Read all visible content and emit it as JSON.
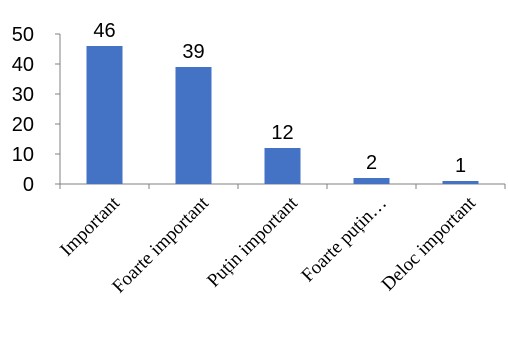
{
  "chart_data": {
    "type": "bar",
    "title": "",
    "xlabel": "",
    "ylabel": "",
    "categories": [
      "Important",
      "Foarte important",
      "Puțin important",
      "Foarte puțin…",
      "Deloc important"
    ],
    "values": [
      46,
      39,
      12,
      2,
      1
    ],
    "data_labels": [
      "46",
      "39",
      "12",
      "2",
      "1"
    ],
    "ylim": [
      0,
      50
    ],
    "yticks": [
      0,
      10,
      20,
      30,
      40,
      50
    ],
    "ytick_labels": [
      "0",
      "10",
      "20",
      "30",
      "40",
      "50"
    ],
    "grid": false,
    "legend": "none",
    "bar_color": "#4472C4"
  }
}
